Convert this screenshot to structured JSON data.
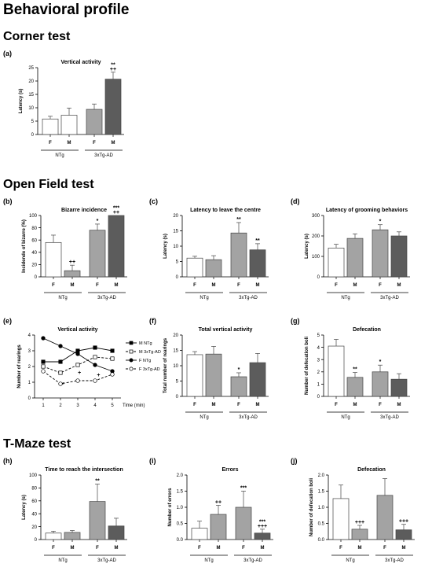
{
  "page": {
    "title": "Behavioral profile",
    "sections": [
      "Corner test",
      "Open Field test",
      "T-Maze test"
    ]
  },
  "chart_data": [
    {
      "id": "a",
      "letter": "(a)",
      "type": "bar",
      "title": "Vertical activity",
      "ylabel": "Latency (s)",
      "ylim": [
        0,
        25
      ],
      "yticks": [
        0,
        5,
        10,
        15,
        20,
        25
      ],
      "categories": [
        "F",
        "M",
        "F",
        "M"
      ],
      "groups": [
        "NTg",
        "3xTg-AD"
      ],
      "values": [
        5.8,
        7.2,
        9.4,
        20.7
      ],
      "errors": [
        1.0,
        2.7,
        2.0,
        2.6
      ],
      "annotations": [
        "",
        "",
        "",
        "**\n++"
      ],
      "colors": [
        "#ffffff",
        "#ffffff",
        "#a3a3a3",
        "#5c5c5c"
      ]
    },
    {
      "id": "b",
      "letter": "(b)",
      "type": "bar",
      "title": "Bizarre incidence",
      "ylabel": "Incidende of bizarre (%)",
      "ylim": [
        0,
        100
      ],
      "yticks": [
        0,
        20,
        40,
        60,
        80,
        100
      ],
      "categories": [
        "F",
        "M",
        "F",
        "M"
      ],
      "groups": [
        "NTg",
        "3xTg-AD"
      ],
      "values": [
        56,
        10,
        76,
        100
      ],
      "errors": [
        12,
        9,
        10,
        0
      ],
      "annotations": [
        "",
        "++",
        "*",
        "***\n++"
      ],
      "colors": [
        "#ffffff",
        "#a3a3a3",
        "#a3a3a3",
        "#5c5c5c"
      ]
    },
    {
      "id": "c",
      "letter": "(c)",
      "type": "bar",
      "title": "Latency to leave the centre",
      "ylabel": "Latency (s)",
      "ylim": [
        0,
        20
      ],
      "yticks": [
        0,
        5,
        10,
        15,
        20
      ],
      "categories": [
        "F",
        "M",
        "F",
        "M"
      ],
      "groups": [
        "NTg",
        "3xTg-AD"
      ],
      "values": [
        6.1,
        5.6,
        14.3,
        8.8
      ],
      "errors": [
        0.6,
        1.3,
        3.4,
        2.0
      ],
      "annotations": [
        "",
        "",
        "**",
        "**"
      ],
      "colors": [
        "#ffffff",
        "#a3a3a3",
        "#a3a3a3",
        "#5c5c5c"
      ]
    },
    {
      "id": "d",
      "letter": "(d)",
      "type": "bar",
      "title": "Latency of grooming behaviors",
      "ylabel": "Latency (s)",
      "ylim": [
        0,
        300
      ],
      "yticks": [
        0,
        100,
        200,
        300
      ],
      "categories": [
        "F",
        "M",
        "F",
        "M"
      ],
      "groups": [
        "NTg",
        "3xTg-AD"
      ],
      "values": [
        141,
        188,
        230,
        200
      ],
      "errors": [
        18,
        22,
        25,
        20
      ],
      "annotations": [
        "",
        "",
        "*",
        ""
      ],
      "colors": [
        "#ffffff",
        "#a3a3a3",
        "#a3a3a3",
        "#5c5c5c"
      ]
    },
    {
      "id": "e",
      "letter": "(e)",
      "type": "line",
      "title": "Vertical activity",
      "ylabel": "Number of rearings",
      "xlabel": "Time (min)",
      "ylim": [
        0,
        4
      ],
      "yticks": [
        0,
        1,
        2,
        3,
        4
      ],
      "xlim": [
        0.5,
        5.5
      ],
      "x": [
        1,
        2,
        3,
        4,
        5
      ],
      "series": [
        {
          "name": "M NTg",
          "values": [
            2.3,
            2.3,
            3.0,
            3.2,
            3.0
          ],
          "marker": "square",
          "fill": "#000000",
          "dash": false
        },
        {
          "name": "M 3xTg-AD",
          "values": [
            2.0,
            1.6,
            2.1,
            2.6,
            2.5
          ],
          "marker": "square",
          "fill": "#ffffff",
          "dash": true
        },
        {
          "name": "F NTg",
          "values": [
            3.8,
            3.3,
            2.8,
            2.1,
            1.7
          ],
          "marker": "circle",
          "fill": "#000000",
          "dash": false
        },
        {
          "name": "F 3xTg-AD",
          "values": [
            1.7,
            0.9,
            1.1,
            1.1,
            1.5
          ],
          "marker": "circle",
          "fill": "#ffffff",
          "dash": true
        }
      ],
      "annotations": [
        {
          "x": 2.15,
          "y": 0.75,
          "text": "*"
        },
        {
          "x": 3.1,
          "y": 1.5,
          "text": "+"
        },
        {
          "x": 4.2,
          "y": 1.35,
          "text": "+"
        }
      ]
    },
    {
      "id": "f",
      "letter": "(f)",
      "type": "bar",
      "title": "Total vertical activity",
      "ylabel": "Total number of rearings",
      "ylim": [
        0,
        20
      ],
      "yticks": [
        0,
        5,
        10,
        15,
        20
      ],
      "categories": [
        "F",
        "M",
        "F",
        "M"
      ],
      "groups": [
        "NTg",
        "3xTg-AD"
      ],
      "values": [
        13.6,
        13.8,
        6.4,
        11.0
      ],
      "errors": [
        1.0,
        2.5,
        1.3,
        3.0
      ],
      "annotations": [
        "",
        "",
        "*",
        ""
      ],
      "colors": [
        "#ffffff",
        "#a3a3a3",
        "#a3a3a3",
        "#5c5c5c"
      ]
    },
    {
      "id": "g",
      "letter": "(g)",
      "type": "bar",
      "title": "Defecation",
      "ylabel": "Number of defecation boli",
      "ylim": [
        0,
        5
      ],
      "yticks": [
        0,
        1,
        2,
        3,
        4,
        5
      ],
      "categories": [
        "F",
        "M",
        "F",
        "M"
      ],
      "groups": [
        "NTg",
        "3xTg-AD"
      ],
      "values": [
        4.1,
        1.55,
        2.0,
        1.4
      ],
      "errors": [
        0.55,
        0.4,
        0.55,
        0.45
      ],
      "annotations": [
        "",
        "**",
        "*",
        ""
      ],
      "colors": [
        "#ffffff",
        "#a3a3a3",
        "#a3a3a3",
        "#5c5c5c"
      ]
    },
    {
      "id": "h",
      "letter": "(h)",
      "type": "bar",
      "title": "Time to reach the intersection",
      "ylabel": "Latency (s)",
      "ylim": [
        0,
        100
      ],
      "yticks": [
        0,
        20,
        40,
        60,
        80,
        100
      ],
      "categories": [
        "F",
        "M",
        "F",
        "M"
      ],
      "groups": [
        "NTg",
        "3xTg-AD"
      ],
      "values": [
        10,
        11,
        59,
        21
      ],
      "errors": [
        3,
        3,
        27,
        12
      ],
      "annotations": [
        "",
        "",
        "**",
        ""
      ],
      "colors": [
        "#ffffff",
        "#a3a3a3",
        "#a3a3a3",
        "#5c5c5c"
      ]
    },
    {
      "id": "i",
      "letter": "(i)",
      "type": "bar",
      "title": "Errors",
      "ylabel": "Number of errors",
      "ylim": [
        0,
        2.0
      ],
      "yticks": [
        0,
        0.5,
        1.0,
        1.5,
        2.0
      ],
      "categories": [
        "F",
        "M",
        "F",
        "M"
      ],
      "groups": [
        "NTg",
        "3xTg-AD"
      ],
      "values": [
        0.35,
        0.78,
        1.0,
        0.2
      ],
      "errors": [
        0.22,
        0.28,
        0.5,
        0.12
      ],
      "annotations": [
        "",
        "++",
        "***",
        "***\n+++"
      ],
      "colors": [
        "#ffffff",
        "#a3a3a3",
        "#a3a3a3",
        "#5c5c5c"
      ]
    },
    {
      "id": "j",
      "letter": "(j)",
      "type": "bar",
      "title": "Defecation",
      "ylabel": "Number of defecation boli",
      "ylim": [
        0,
        2.0
      ],
      "yticks": [
        0,
        0.5,
        1.0,
        1.5,
        2.0
      ],
      "categories": [
        "F",
        "M",
        "F",
        "M"
      ],
      "groups": [
        "NTg",
        "3xTg-AD"
      ],
      "values": [
        1.27,
        0.32,
        1.37,
        0.3
      ],
      "errors": [
        0.42,
        0.12,
        0.52,
        0.17
      ],
      "annotations": [
        "",
        "+++",
        "",
        "+++"
      ],
      "colors": [
        "#ffffff",
        "#a3a3a3",
        "#a3a3a3",
        "#5c5c5c"
      ]
    }
  ]
}
